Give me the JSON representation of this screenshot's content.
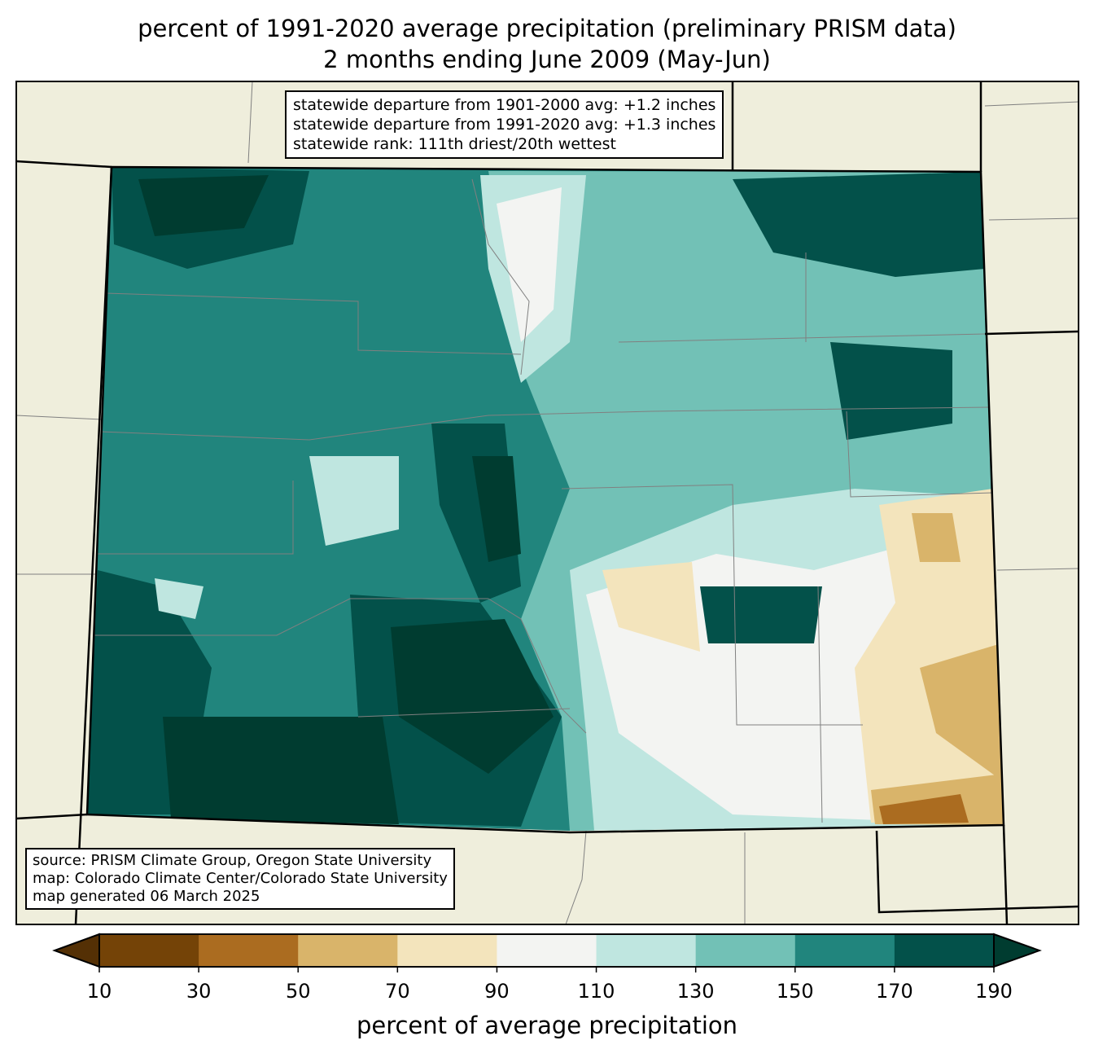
{
  "title": {
    "line1": "percent of 1991-2020 average precipitation (preliminary PRISM data)",
    "line2": "2 months ending June 2009 (May-Jun)"
  },
  "stats_box": {
    "line1": "statewide departure from 1901-2000 avg: +1.2 inches",
    "line2": "statewide departure from 1991-2020 avg: +1.3 inches",
    "line3": "statewide rank: 111th driest/20th wettest"
  },
  "source_box": {
    "line1": "source: PRISM Climate Group, Oregon State University",
    "line2": "map: Colorado Climate Center/Colorado State University",
    "line3": "map generated 06 March 2025"
  },
  "colorbar": {
    "label": "percent of average precipitation",
    "ticks": [
      "10",
      "30",
      "50",
      "70",
      "90",
      "110",
      "130",
      "150",
      "170",
      "190"
    ],
    "under_color": "#543005",
    "over_color": "#003c30",
    "colors": [
      "#744307",
      "#ab6c20",
      "#d9b46a",
      "#f3e4bc",
      "#f3f4f2",
      "#bfe6e0",
      "#72c1b6",
      "#21857d",
      "#03514a"
    ]
  },
  "map_colors": {
    "land": "#efeedc",
    "border": "#000000",
    "county": "#808080"
  }
}
